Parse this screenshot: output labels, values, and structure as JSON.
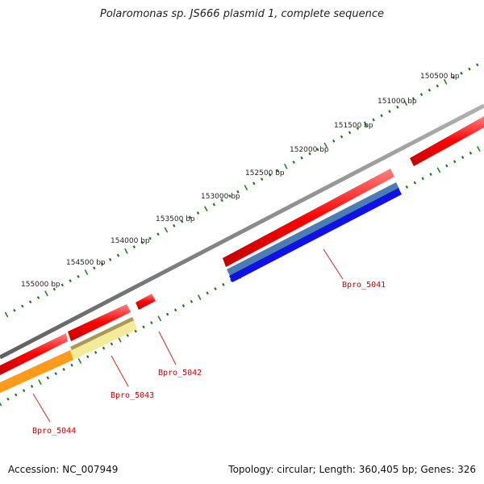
{
  "title": "Polaromonas sp. JS666 plasmid 1, complete sequence",
  "scale_labels": [
    "150500 bp",
    "151000 bp",
    "151500 bp",
    "152000 bp",
    "152500 bp",
    "153000 bp",
    "153500 bp",
    "154000 bp",
    "154500 bp",
    "155000 bp"
  ],
  "gene_labels": [
    "Bpro_5041",
    "Bpro_5042",
    "Bpro_5043",
    "Bpro_5044"
  ],
  "footer": {
    "accession": "Accession: NC_007949",
    "summary": "Topology: circular; Length: 360,405 bp; Genes: 326"
  },
  "colors": {
    "backbone": "#808080",
    "cds": "#ff0000",
    "gene": "#4a7db5",
    "blue_feature": "#0000ee",
    "pale_feature": "#f2eb9a",
    "orange_feature": "#ff9a1a",
    "tick": "#1a8a1a",
    "label": "#cc0000"
  }
}
